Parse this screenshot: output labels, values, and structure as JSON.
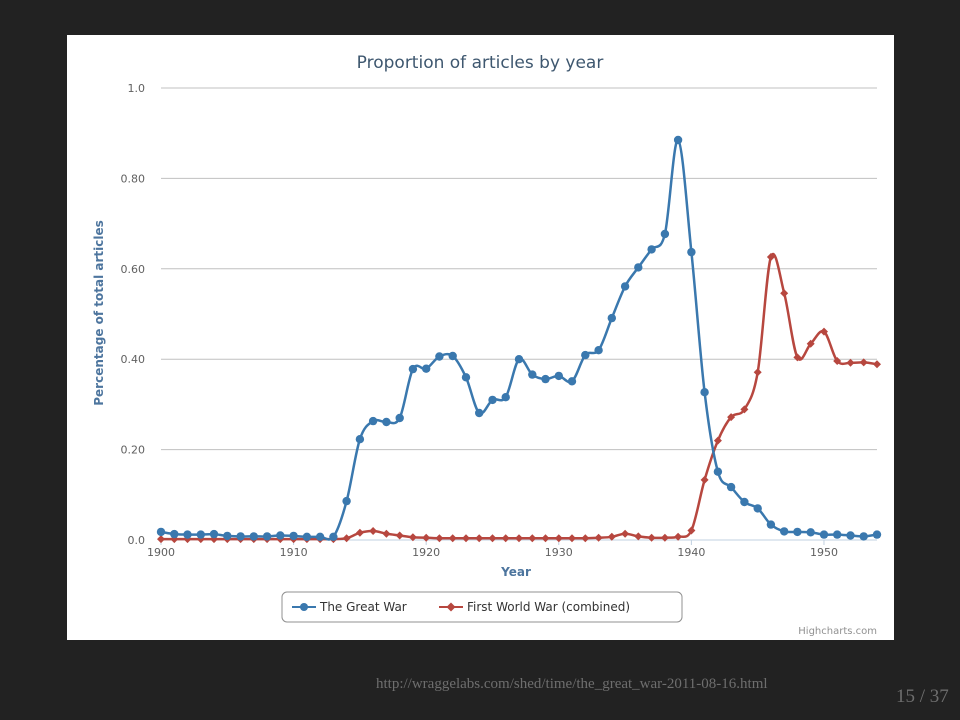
{
  "slide": {
    "source_url": "http://wraggelabs.com/shed/time/the_great_war-2011-08-16.html",
    "counter": "15 / 37"
  },
  "chart_data": {
    "type": "line",
    "title": "Proportion of articles by year",
    "xlabel": "Year",
    "ylabel": "Percentage of total articles",
    "xlim": [
      1900,
      1954
    ],
    "ylim": [
      0,
      1.0
    ],
    "x_ticks": [
      "1900",
      "1910",
      "1920",
      "1930",
      "1940",
      "1950"
    ],
    "y_ticks": [
      "0.0",
      "0.20",
      "0.40",
      "0.60",
      "0.80",
      "1.0"
    ],
    "grid": true,
    "legend_position": "bottom-center",
    "credits": "Highcharts.com",
    "x": [
      1900,
      1901,
      1902,
      1903,
      1904,
      1905,
      1906,
      1907,
      1908,
      1909,
      1910,
      1911,
      1912,
      1913,
      1914,
      1915,
      1916,
      1917,
      1918,
      1919,
      1920,
      1921,
      1922,
      1923,
      1924,
      1925,
      1926,
      1927,
      1928,
      1929,
      1930,
      1931,
      1932,
      1933,
      1934,
      1935,
      1936,
      1937,
      1938,
      1939,
      1940,
      1941,
      1942,
      1943,
      1944,
      1945,
      1946,
      1947,
      1948,
      1949,
      1950,
      1951,
      1952,
      1953,
      1954
    ],
    "series": [
      {
        "name": "The Great War",
        "color": "#3a78ae",
        "marker": "circle",
        "values": [
          0.018,
          0.013,
          0.012,
          0.012,
          0.013,
          0.009,
          0.008,
          0.008,
          0.008,
          0.01,
          0.009,
          0.007,
          0.007,
          0.007,
          0.086,
          0.223,
          0.263,
          0.261,
          0.27,
          0.378,
          0.379,
          0.406,
          0.407,
          0.36,
          0.281,
          0.31,
          0.316,
          0.4,
          0.366,
          0.356,
          0.363,
          0.351,
          0.409,
          0.42,
          0.491,
          0.561,
          0.603,
          0.643,
          0.677,
          0.885,
          0.637,
          0.327,
          0.151,
          0.117,
          0.084,
          0.07,
          0.034,
          0.019,
          0.018,
          0.017,
          0.012,
          0.012,
          0.01,
          0.008,
          0.012
        ]
      },
      {
        "name": "First World War (combined)",
        "color": "#b7473f",
        "marker": "diamond",
        "values": [
          0.002,
          0.002,
          0.002,
          0.002,
          0.002,
          0.002,
          0.002,
          0.002,
          0.002,
          0.002,
          0.002,
          0.002,
          0.002,
          0.002,
          0.004,
          0.016,
          0.02,
          0.014,
          0.01,
          0.006,
          0.005,
          0.004,
          0.004,
          0.004,
          0.004,
          0.004,
          0.004,
          0.004,
          0.004,
          0.004,
          0.004,
          0.004,
          0.004,
          0.005,
          0.007,
          0.014,
          0.008,
          0.005,
          0.005,
          0.007,
          0.021,
          0.133,
          0.22,
          0.272,
          0.289,
          0.371,
          0.626,
          0.546,
          0.404,
          0.434,
          0.461,
          0.396,
          0.392,
          0.393,
          0.389
        ]
      }
    ]
  }
}
